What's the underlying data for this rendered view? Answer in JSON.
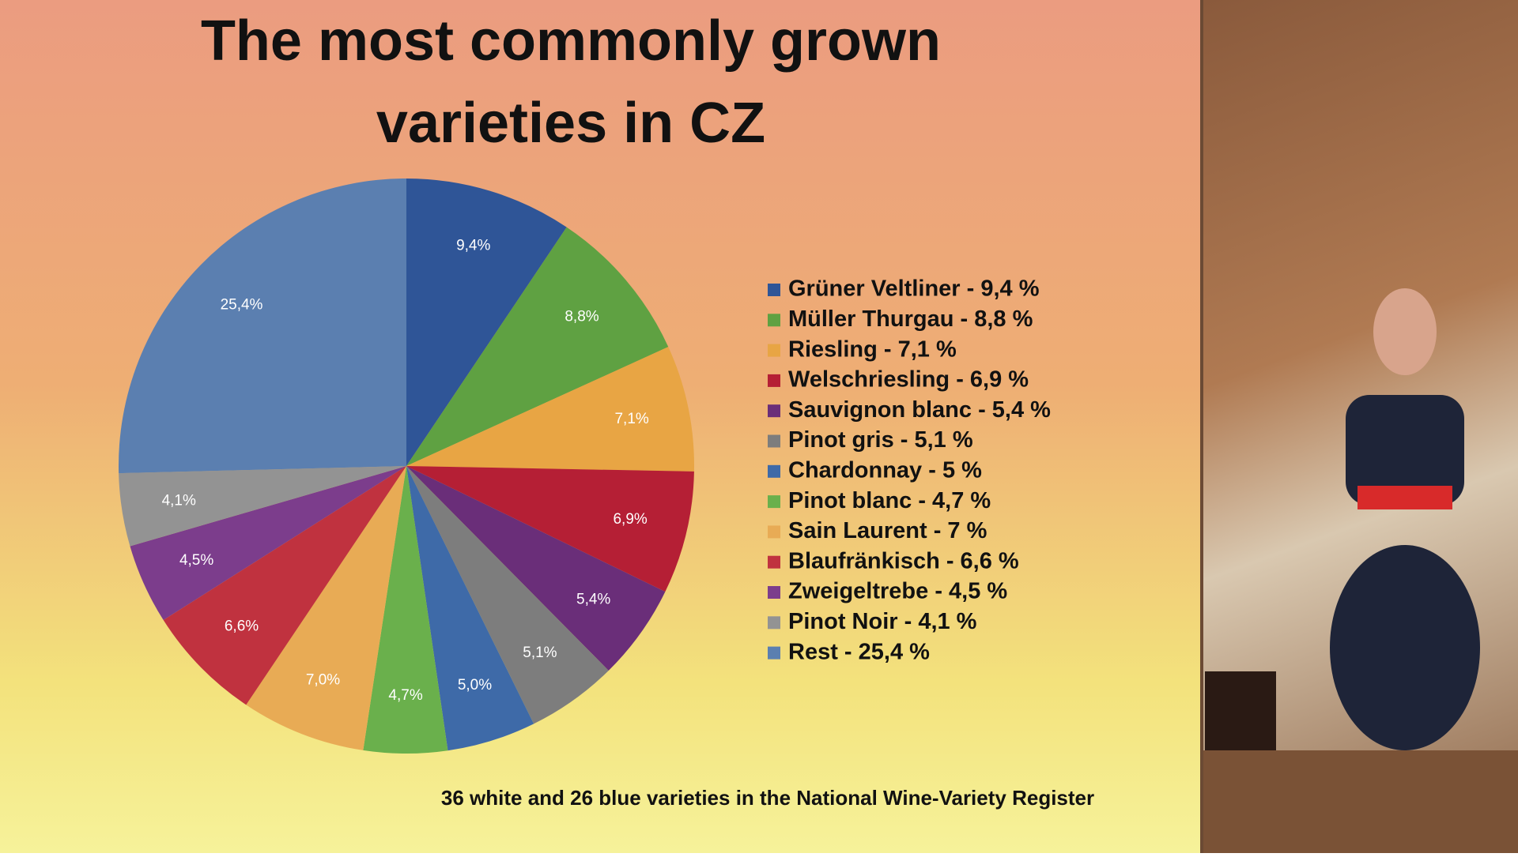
{
  "chart_data": {
    "type": "pie",
    "title": "The most commonly grown varieties in CZ",
    "categories": [
      "Grüner Veltliner - 9,4 %",
      "Müller Thurgau - 8,8 %",
      "Riesling - 7,1 %",
      "Welschriesling - 6,9 %",
      "Sauvignon blanc - 5,4 %",
      "Pinot gris - 5,1 %",
      "Chardonnay - 5 %",
      "Pinot blanc - 4,7 %",
      "Sain Laurent - 7 %",
      "Blaufränkisch - 6,6 %",
      "Zweigeltrebe - 4,5 %",
      "Pinot Noir - 4,1 %",
      "Rest - 25,4 %"
    ],
    "values": [
      9.4,
      8.8,
      7.1,
      6.9,
      5.4,
      5.1,
      5.0,
      4.7,
      7.0,
      6.6,
      4.5,
      4.1,
      25.4
    ],
    "value_labels": [
      "9,4%",
      "8,8%",
      "7,1%",
      "6,9%",
      "5,4%",
      "5,1%",
      "5,0%",
      "4,7%",
      "7,0%",
      "6,6%",
      "4,5%",
      "4,1%",
      "25,4%"
    ],
    "colors": [
      "#2f5597",
      "#5fa142",
      "#e8a544",
      "#b51f35",
      "#6a2e79",
      "#7d7d7d",
      "#3e6aa8",
      "#6ab04c",
      "#e8ab55",
      "#c0323f",
      "#7c3d8c",
      "#939393",
      "#5b7fb0"
    ],
    "legend": "right",
    "note": "36 white and 26 blue varieties in the National Wine-Variety Register"
  }
}
